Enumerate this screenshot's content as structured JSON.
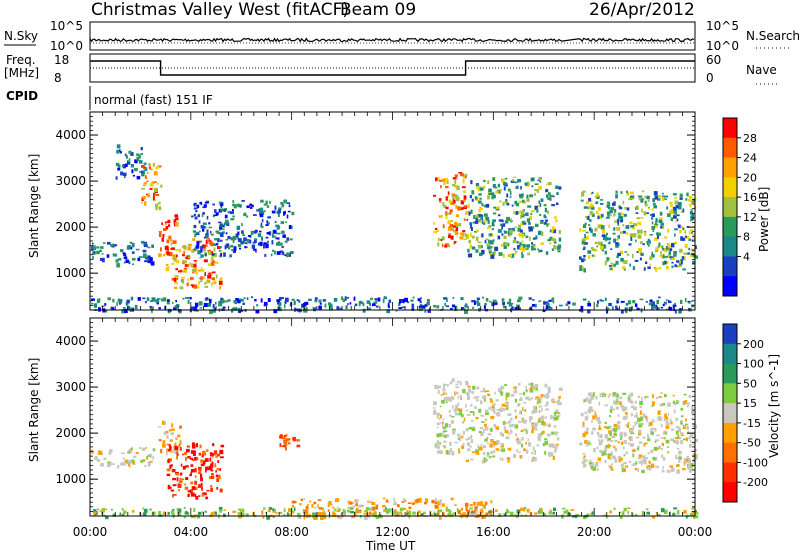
{
  "header": {
    "title": "Christmas Valley West (fitACF)",
    "beam": "Beam 09",
    "date": "26/Apr/2012"
  },
  "strips": {
    "nsky_label": "N.Sky",
    "nsearch_label": "N.Search",
    "nsky_ticks": [
      "10^5",
      "10^0"
    ],
    "nsky_ticks_right": [
      "10^5",
      "10^0"
    ],
    "freq_label_line1": "Freq.",
    "freq_label_line2": "[MHz]",
    "freq_ticks": [
      "18",
      "8"
    ],
    "nave_label": "Nave",
    "nave_ticks": [
      "60",
      "0"
    ],
    "cpid_label": "CPID",
    "cpid_text": "normal (fast) 151 IF"
  },
  "chart_data": [
    {
      "type": "line",
      "name": "sky-noise-strip",
      "x_unit": "hours UT",
      "segments": [
        {
          "x": [
            0.0,
            18.75
          ],
          "y_level": "mid-high",
          "noise": true
        },
        {
          "x": [
            19.4,
            24.0
          ],
          "y_level": "mid-high",
          "noise": true
        }
      ]
    },
    {
      "type": "line",
      "name": "frequency-strip",
      "x_unit": "hours UT",
      "ylim": [
        8,
        18
      ],
      "x": [
        0.0,
        2.8,
        2.8,
        14.9,
        14.9,
        18.75,
        19.4,
        24.0
      ],
      "y": [
        15.5,
        15.5,
        10.5,
        10.5,
        15.5,
        15.5,
        15.5,
        15.5
      ],
      "nave_dotted_level": 13
    },
    {
      "type": "heatmap",
      "name": "power",
      "ylabel": "Slant Range [km]",
      "ylim": [
        200,
        4500
      ],
      "yticks": [
        1000,
        2000,
        3000,
        4000
      ],
      "xlim": [
        0,
        24
      ],
      "colorbar": {
        "label": "Power [dB]",
        "ticks": [
          "28",
          "24",
          "20",
          "16",
          "12",
          "8",
          "4"
        ],
        "colors": [
          "#ff0000",
          "#ff5a00",
          "#ffa000",
          "#f0d000",
          "#a0c040",
          "#2a9a5a",
          "#1a8888",
          "#1a40c0",
          "#0000ff"
        ]
      },
      "regions": [
        {
          "t": [
            1.0,
            2.2
          ],
          "r": [
            3100,
            3800
          ],
          "level": "low"
        },
        {
          "t": [
            2.0,
            2.8
          ],
          "r": [
            2400,
            3400
          ],
          "level": "high"
        },
        {
          "t": [
            0.0,
            2.5
          ],
          "r": [
            1200,
            1700
          ],
          "level": "low"
        },
        {
          "t": [
            2.7,
            3.4
          ],
          "r": [
            1400,
            2300
          ],
          "level": "max"
        },
        {
          "t": [
            3.0,
            5.2
          ],
          "r": [
            700,
            1800
          ],
          "level": "high"
        },
        {
          "t": [
            4.0,
            8.0
          ],
          "r": [
            1400,
            2600
          ],
          "level": "low"
        },
        {
          "t": [
            13.6,
            14.9
          ],
          "r": [
            1600,
            3200
          ],
          "level": "high"
        },
        {
          "t": [
            14.9,
            18.6
          ],
          "r": [
            1400,
            3100
          ],
          "level": "mid"
        },
        {
          "t": [
            19.4,
            24.0
          ],
          "r": [
            1100,
            2800
          ],
          "level": "mid"
        },
        {
          "t": [
            0.0,
            24.0
          ],
          "r": [
            200,
            500
          ],
          "level": "low"
        }
      ]
    },
    {
      "type": "heatmap",
      "name": "velocity",
      "ylabel": "Slant Range [km]",
      "ylim": [
        200,
        4500
      ],
      "yticks": [
        1000,
        2000,
        3000,
        4000
      ],
      "xlim": [
        0,
        24
      ],
      "xlabel": "Time UT",
      "xticks": [
        "00:00",
        "04:00",
        "08:00",
        "12:00",
        "16:00",
        "20:00",
        "00:00"
      ],
      "colorbar": {
        "label": "Velocity [m s^-1]",
        "ticks": [
          "200",
          "100",
          "50",
          "15",
          "-15",
          "-50",
          "-100",
          "-200"
        ],
        "colors": [
          "#1a40c0",
          "#1a8888",
          "#2a9a5a",
          "#80cc40",
          "#c8c8c0",
          "#ffa000",
          "#ff7000",
          "#ff3000",
          "#ff0000"
        ]
      },
      "regions": [
        {
          "t": [
            0.0,
            2.5
          ],
          "r": [
            1300,
            1700
          ],
          "vel": "-15..15"
        },
        {
          "t": [
            2.7,
            3.6
          ],
          "r": [
            1600,
            2300
          ],
          "vel": "-50"
        },
        {
          "t": [
            3.0,
            5.2
          ],
          "r": [
            600,
            1800
          ],
          "vel": "-200"
        },
        {
          "t": [
            7.5,
            8.2
          ],
          "r": [
            1700,
            2000
          ],
          "vel": "-100"
        },
        {
          "t": [
            13.6,
            14.9
          ],
          "r": [
            1600,
            3200
          ],
          "vel": "-15..15"
        },
        {
          "t": [
            14.9,
            18.6
          ],
          "r": [
            1400,
            3100
          ],
          "vel": "-15..15"
        },
        {
          "t": [
            19.4,
            24.0
          ],
          "r": [
            1200,
            2900
          ],
          "vel": "-15..15"
        },
        {
          "t": [
            8.0,
            16.0
          ],
          "r": [
            200,
            600
          ],
          "vel": "-50"
        },
        {
          "t": [
            0.0,
            24.0
          ],
          "r": [
            200,
            400
          ],
          "vel": "15"
        }
      ]
    }
  ]
}
